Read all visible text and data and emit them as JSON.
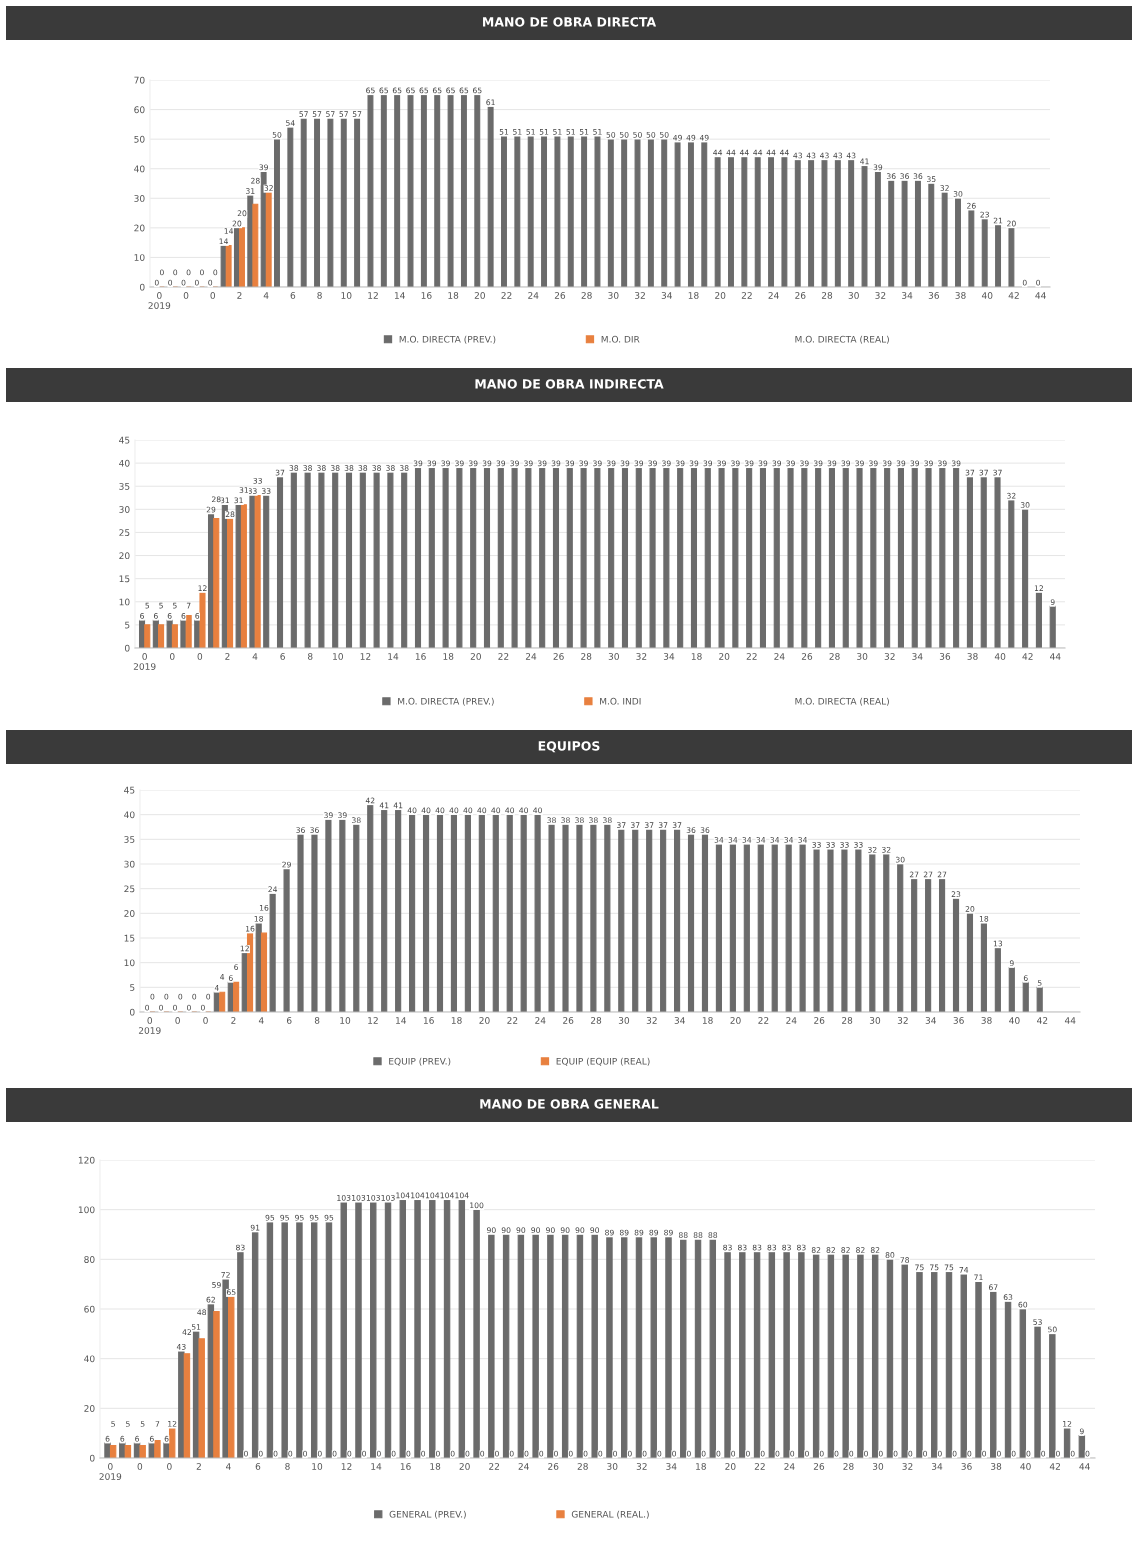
{
  "chart_data": [
    {
      "type": "bar",
      "title": "MANO DE OBRA DIRECTA",
      "categories": [
        "0\n2019",
        null,
        "0",
        null,
        "0",
        null,
        "2",
        null,
        "4",
        null,
        "6",
        null,
        "8",
        null,
        "10",
        null,
        "12",
        null,
        "14",
        null,
        "16",
        null,
        "18",
        null,
        "20",
        null,
        "22",
        null,
        "24",
        null,
        "26",
        null,
        "28",
        null,
        "30",
        null,
        "32",
        null,
        "34",
        null,
        "18",
        null,
        "20",
        null,
        "22",
        null,
        "24",
        null,
        "26",
        null,
        "28",
        null,
        "30",
        null,
        "32",
        null,
        "34",
        null,
        "36",
        null,
        "38",
        null,
        "40",
        null,
        "42",
        null,
        "44"
      ],
      "series": [
        {
          "name": "M.O. DIRECTA (PREV.)",
          "color": "#6b6b6b",
          "values": [
            0,
            0,
            0,
            0,
            0,
            14,
            20,
            31,
            39,
            50,
            54,
            57,
            57,
            57,
            57,
            57,
            65,
            65,
            65,
            65,
            65,
            65,
            65,
            65,
            65,
            61,
            51,
            51,
            51,
            51,
            51,
            51,
            51,
            51,
            50,
            50,
            50,
            50,
            50,
            49,
            49,
            49,
            44,
            44,
            44,
            44,
            44,
            44,
            43,
            43,
            43,
            43,
            43,
            41,
            39,
            36,
            36,
            36,
            35,
            32,
            30,
            26,
            23,
            21,
            20,
            0,
            0
          ]
        },
        {
          "name": "M.O. DIR",
          "color": "#e8803f",
          "values": [
            0,
            0,
            0,
            0,
            0,
            14,
            20,
            28,
            32,
            null,
            null,
            null,
            null,
            null,
            null,
            null,
            null,
            null,
            null,
            null,
            null,
            null,
            null,
            null,
            null,
            null,
            null,
            null,
            null,
            null,
            null,
            null,
            null,
            null,
            null,
            null,
            null,
            null,
            null,
            null,
            null,
            null,
            null,
            null,
            null,
            null,
            null,
            null,
            null,
            null,
            null,
            null,
            null,
            null,
            null,
            null,
            null,
            null,
            null,
            null,
            null,
            null,
            null,
            null,
            null,
            null,
            null
          ]
        }
      ],
      "ylim": [
        0,
        70
      ],
      "yticks": [
        0,
        10,
        20,
        30,
        40,
        50,
        60,
        70
      ],
      "grid": "y",
      "legend": "bottom",
      "data_labels": true,
      "annotations": [
        "M.O. DIRECTA (REAL)"
      ]
    },
    {
      "type": "bar",
      "title": "MANO DE OBRA INDIRECTA",
      "categories": [
        "0\n2019",
        null,
        "0",
        null,
        "0",
        null,
        "2",
        null,
        "4",
        null,
        "6",
        null,
        "8",
        null,
        "10",
        null,
        "12",
        null,
        "14",
        null,
        "16",
        null,
        "18",
        null,
        "20",
        null,
        "22",
        null,
        "24",
        null,
        "26",
        null,
        "28",
        null,
        "30",
        null,
        "32",
        null,
        "34",
        null,
        "18",
        null,
        "20",
        null,
        "22",
        null,
        "24",
        null,
        "26",
        null,
        "28",
        null,
        "30",
        null,
        "32",
        null,
        "34",
        null,
        "36",
        null,
        "38",
        null,
        "40",
        null,
        "42",
        null,
        "44"
      ],
      "series": [
        {
          "name": "M.O. DIRECTA (PREV.)",
          "color": "#6b6b6b",
          "values": [
            6,
            6,
            6,
            6,
            6,
            29,
            31,
            31,
            33,
            33,
            37,
            38,
            38,
            38,
            38,
            38,
            38,
            38,
            38,
            38,
            39,
            39,
            39,
            39,
            39,
            39,
            39,
            39,
            39,
            39,
            39,
            39,
            39,
            39,
            39,
            39,
            39,
            39,
            39,
            39,
            39,
            39,
            39,
            39,
            39,
            39,
            39,
            39,
            39,
            39,
            39,
            39,
            39,
            39,
            39,
            39,
            39,
            39,
            39,
            39,
            37,
            37,
            37,
            32,
            30,
            12,
            9
          ]
        },
        {
          "name": "M.O. INDI",
          "color": "#e8803f",
          "values": [
            5,
            5,
            5,
            7,
            12,
            28,
            28,
            31,
            33,
            null,
            null,
            null,
            null,
            null,
            null,
            null,
            null,
            null,
            null,
            null,
            null,
            null,
            null,
            null,
            null,
            null,
            null,
            null,
            null,
            null,
            null,
            null,
            null,
            null,
            null,
            null,
            null,
            null,
            null,
            null,
            null,
            null,
            null,
            null,
            null,
            null,
            null,
            null,
            null,
            null,
            null,
            null,
            null,
            null,
            null,
            null,
            null,
            null,
            null,
            null,
            null,
            null,
            null,
            null,
            null,
            null,
            null
          ]
        }
      ],
      "ylim": [
        0,
        45
      ],
      "yticks": [
        0,
        5,
        10,
        15,
        20,
        25,
        30,
        35,
        40,
        45
      ],
      "grid": "y",
      "legend": "bottom",
      "data_labels": true,
      "annotations": [
        "M.O. DIRECTA (REAL)"
      ]
    },
    {
      "type": "bar",
      "title": "EQUIPOS",
      "categories": [
        "0\n2019",
        null,
        "0",
        null,
        "0",
        null,
        "2",
        null,
        "4",
        null,
        "6",
        null,
        "8",
        null,
        "10",
        null,
        "12",
        null,
        "14",
        null,
        "16",
        null,
        "18",
        null,
        "20",
        null,
        "22",
        null,
        "24",
        null,
        "26",
        null,
        "28",
        null,
        "30",
        null,
        "32",
        null,
        "34",
        null,
        "18",
        null,
        "20",
        null,
        "22",
        null,
        "24",
        null,
        "26",
        null,
        "28",
        null,
        "30",
        null,
        "32",
        null,
        "34",
        null,
        "36",
        null,
        "38",
        null,
        "40",
        null,
        "42",
        null,
        "44"
      ],
      "series": [
        {
          "name": "EQUIP (PREV.)",
          "color": "#6b6b6b",
          "values": [
            0,
            0,
            0,
            0,
            0,
            4,
            6,
            12,
            18,
            24,
            29,
            36,
            36,
            39,
            39,
            38,
            42,
            41,
            41,
            40,
            40,
            40,
            40,
            40,
            40,
            40,
            40,
            40,
            40,
            38,
            38,
            38,
            38,
            38,
            37,
            37,
            37,
            37,
            37,
            36,
            36,
            34,
            34,
            34,
            34,
            34,
            34,
            34,
            33,
            33,
            33,
            33,
            32,
            32,
            30,
            27,
            27,
            27,
            23,
            20,
            18,
            13,
            9,
            6,
            5,
            null,
            null
          ]
        },
        {
          "name": "EQUIP (EQUIP (REAL)",
          "color": "#e8803f",
          "values": [
            0,
            0,
            0,
            0,
            0,
            4,
            6,
            16,
            16,
            null,
            null,
            null,
            null,
            null,
            null,
            null,
            null,
            null,
            null,
            null,
            null,
            null,
            null,
            null,
            null,
            null,
            null,
            null,
            null,
            null,
            null,
            null,
            null,
            null,
            null,
            null,
            null,
            null,
            null,
            null,
            null,
            null,
            null,
            null,
            null,
            null,
            null,
            null,
            null,
            null,
            null,
            null,
            null,
            null,
            null,
            null,
            null,
            null,
            null,
            null,
            null,
            null,
            null,
            null,
            null,
            null,
            null
          ]
        }
      ],
      "ylim": [
        0,
        45
      ],
      "yticks": [
        0,
        5,
        10,
        15,
        20,
        25,
        30,
        35,
        40,
        45
      ],
      "grid": "y",
      "legend": "bottom",
      "data_labels": true
    },
    {
      "type": "bar",
      "title": "MANO DE OBRA GENERAL",
      "categories": [
        "0\n2019",
        null,
        "0",
        null,
        "0",
        null,
        "2",
        null,
        "4",
        null,
        "6",
        null,
        "8",
        null,
        "10",
        null,
        "12",
        null,
        "14",
        null,
        "16",
        null,
        "18",
        null,
        "20",
        null,
        "22",
        null,
        "24",
        null,
        "26",
        null,
        "28",
        null,
        "30",
        null,
        "32",
        null,
        "34",
        null,
        "18",
        null,
        "20",
        null,
        "22",
        null,
        "24",
        null,
        "26",
        null,
        "28",
        null,
        "30",
        null,
        "32",
        null,
        "34",
        null,
        "36",
        null,
        "38",
        null,
        "40",
        null,
        "42",
        null,
        "44"
      ],
      "series": [
        {
          "name": "GENERAL (PREV.)",
          "color": "#6b6b6b",
          "values": [
            6,
            6,
            6,
            6,
            6,
            43,
            51,
            62,
            72,
            83,
            91,
            95,
            95,
            95,
            95,
            95,
            103,
            103,
            103,
            103,
            104,
            104,
            104,
            104,
            104,
            100,
            90,
            90,
            90,
            90,
            90,
            90,
            90,
            90,
            89,
            89,
            89,
            89,
            89,
            88,
            88,
            88,
            83,
            83,
            83,
            83,
            83,
            83,
            82,
            82,
            82,
            82,
            82,
            80,
            78,
            75,
            75,
            75,
            74,
            71,
            67,
            63,
            60,
            53,
            50,
            12,
            9
          ]
        },
        {
          "name": "GENERAL (REAL.)",
          "color": "#e8803f",
          "values": [
            5,
            5,
            5,
            7,
            12,
            42,
            48,
            59,
            65,
            0,
            0,
            0,
            0,
            0,
            0,
            0,
            0,
            0,
            0,
            0,
            0,
            0,
            0,
            0,
            0,
            0,
            0,
            0,
            0,
            0,
            0,
            0,
            0,
            0,
            0,
            0,
            0,
            0,
            0,
            0,
            0,
            0,
            0,
            0,
            0,
            0,
            0,
            0,
            0,
            0,
            0,
            0,
            0,
            0,
            0,
            0,
            0,
            0,
            0,
            0,
            0,
            0,
            0,
            0,
            0,
            0,
            0
          ]
        }
      ],
      "ylim": [
        0,
        120
      ],
      "yticks": [
        0,
        20,
        40,
        60,
        80,
        100,
        120
      ],
      "grid": "y",
      "legend": "bottom",
      "data_labels": true
    }
  ]
}
